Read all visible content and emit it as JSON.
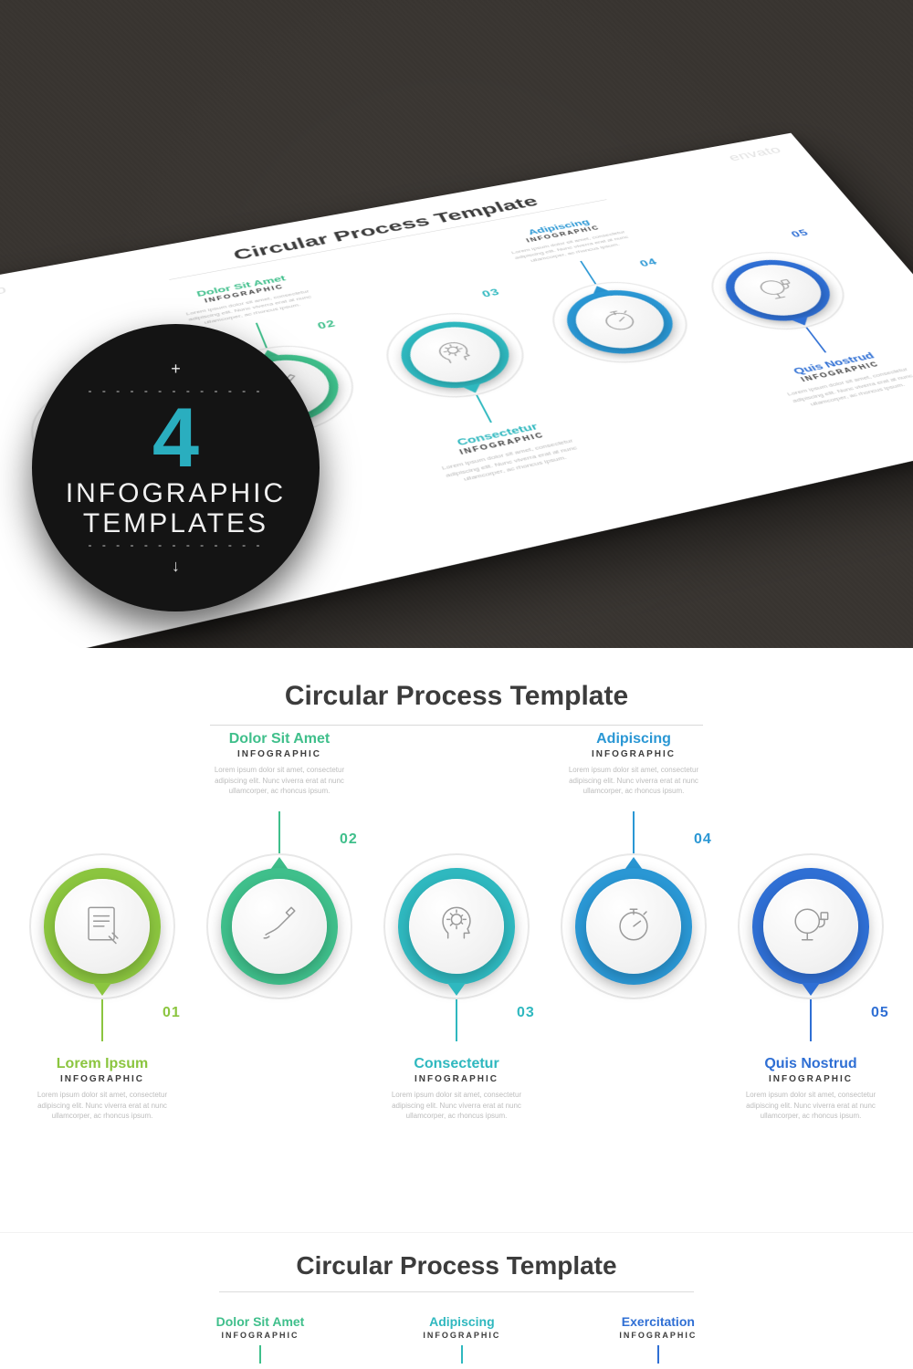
{
  "watermark": "envato",
  "badge": {
    "plus": "+",
    "dashes": "- - - - - - - - - - - - -",
    "big_number": "4",
    "big_color": "#2aaebf",
    "line1": "INFOGRAPHIC",
    "line2": "TEMPLATES",
    "arrow": "↓"
  },
  "title": "Circular Process Template",
  "sublabel": "INFOGRAPHIC",
  "body": "Lorem ipsum dolor sit amet, consectetur adipiscing elit. Nunc viverra erat at nunc ullamcorper, ac rhoncus ipsum.",
  "steps": [
    {
      "num": "01",
      "pos": "dn",
      "title": "Lorem Ipsum",
      "color": "#8bc53f",
      "icon": "document"
    },
    {
      "num": "02",
      "pos": "up",
      "title": "Dolor Sit Amet",
      "color": "#3fbf8b",
      "icon": "write"
    },
    {
      "num": "03",
      "pos": "dn",
      "title": "Consectetur",
      "color": "#2fb8bf",
      "icon": "headgear"
    },
    {
      "num": "04",
      "pos": "up",
      "title": "Adipiscing",
      "color": "#2a97d4",
      "icon": "stopwatch"
    },
    {
      "num": "05",
      "pos": "dn",
      "title": "Quis Nostrud",
      "color": "#2f6fd4",
      "icon": "trophyhead"
    }
  ],
  "teaser": [
    {
      "title": "Dolor Sit Amet",
      "color": "#3fbf8b"
    },
    {
      "title": "Adipiscing",
      "color": "#2fb8bf"
    },
    {
      "title": "Exercitation",
      "color": "#2f6fd4"
    }
  ],
  "outer_ring_color": "#e8e8e8",
  "title_color": "#3c3c3c"
}
